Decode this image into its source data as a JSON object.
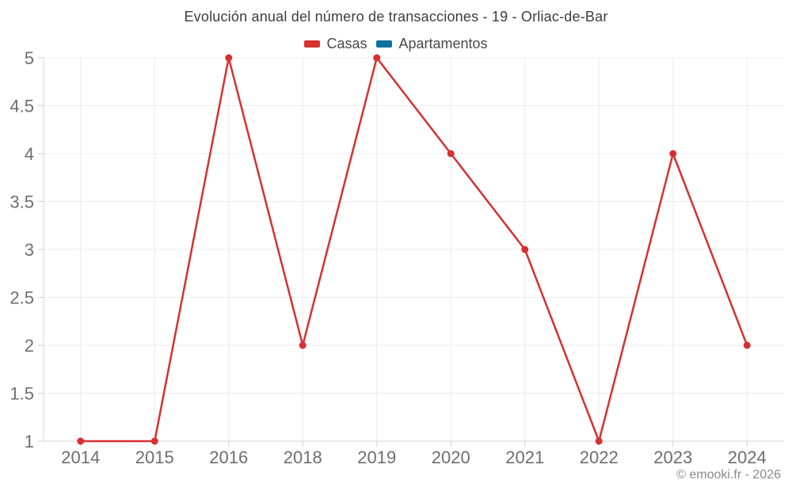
{
  "title": "Evolución anual del número de transacciones - 19 - Orliac-de-Bar",
  "legend": {
    "items": [
      {
        "label": "Casas",
        "color": "#d63031"
      },
      {
        "label": "Apartamentos",
        "color": "#1070a0"
      }
    ]
  },
  "footer": {
    "credit": "© emooki.fr - 2026"
  },
  "chart_data": {
    "type": "line",
    "title": "Evolución anual del número de transacciones - 19 - Orliac-de-Bar",
    "categories": [
      "2014",
      "2015",
      "2016",
      "2018",
      "2019",
      "2020",
      "2021",
      "2022",
      "2023",
      "2024"
    ],
    "series": [
      {
        "name": "Casas",
        "color": "#d63031",
        "values": [
          1,
          1,
          5,
          2,
          5,
          4,
          3,
          1,
          4,
          2
        ]
      },
      {
        "name": "Apartamentos",
        "color": "#1070a0",
        "values": []
      }
    ],
    "xlabel": "",
    "ylabel": "",
    "ylim": [
      1,
      5
    ],
    "y_ticks": [
      "5",
      "4.5",
      "4",
      "3.5",
      "3",
      "2.5",
      "2",
      "1.5",
      "1"
    ],
    "grid": true,
    "legend_position": "top"
  }
}
